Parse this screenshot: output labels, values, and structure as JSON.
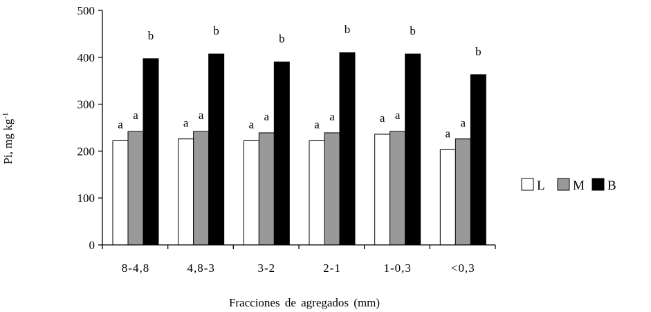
{
  "chart_data": {
    "type": "bar",
    "title": "",
    "xlabel": "Fracciones de agregados (mm)",
    "ylabel": "Pi, mg kg",
    "ylabel_sup": "-1",
    "ylim": [
      0,
      500
    ],
    "yticks": [
      0,
      100,
      200,
      300,
      400,
      500
    ],
    "grid": false,
    "legend_position": "right",
    "categories": [
      "8-4,8",
      "4,8-3",
      "3-2",
      "2-1",
      "1-0,3",
      "<0,3"
    ],
    "series": [
      {
        "name": "L",
        "color": "#ffffff",
        "values": [
          222,
          226,
          222,
          222,
          236,
          203
        ],
        "letters": [
          "a",
          "a",
          "a",
          "a",
          "a",
          "a"
        ]
      },
      {
        "name": "M",
        "color": "#999999",
        "values": [
          242,
          242,
          239,
          239,
          242,
          226
        ],
        "letters": [
          "a",
          "a",
          "a",
          "a",
          "a",
          "a"
        ]
      },
      {
        "name": "B",
        "color": "#000000",
        "values": [
          397,
          407,
          390,
          410,
          407,
          363
        ],
        "letters": [
          "b",
          "b",
          "b",
          "b",
          "b",
          "b"
        ]
      }
    ]
  }
}
